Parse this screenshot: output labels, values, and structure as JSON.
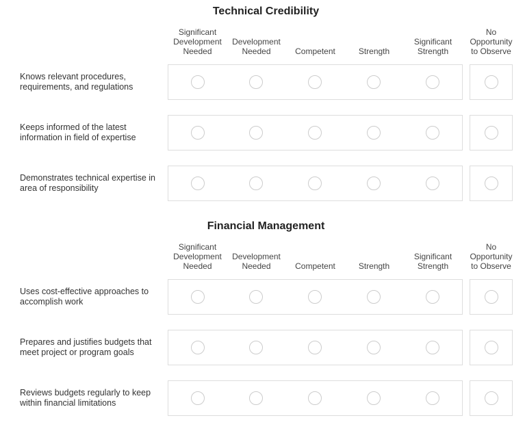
{
  "sections": [
    {
      "title": "Technical Credibility",
      "columns": [
        "Significant Development Needed",
        "Development Needed",
        "Competent",
        "Strength",
        "Significant Strength",
        "No Opportunity to Observe"
      ],
      "rows": [
        "Knows relevant procedures, requirements, and regulations",
        "Keeps informed of the latest information in field of expertise",
        "Demonstrates technical expertise in area of responsibility"
      ]
    },
    {
      "title": "Financial Management",
      "columns": [
        "Significant Development Needed",
        "Development Needed",
        "Competent",
        "Strength",
        "Significant Strength",
        "No Opportunity to Observe"
      ],
      "rows": [
        "Uses cost-effective approaches to accomplish work",
        "Prepares and justifies budgets that meet project or program goals",
        "Reviews budgets regularly to keep within financial limitations"
      ]
    }
  ]
}
